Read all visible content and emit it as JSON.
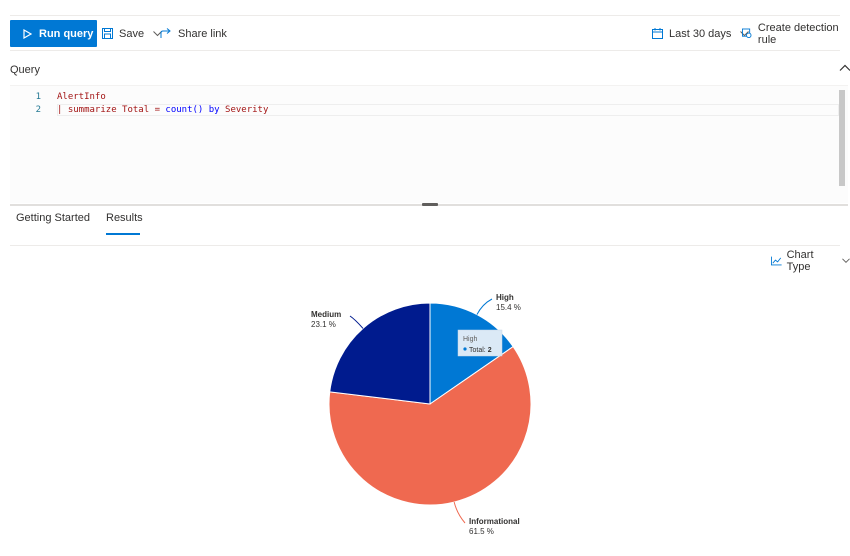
{
  "toolbar": {
    "run_query_label": "Run query",
    "save_label": "Save",
    "share_link_label": "Share link",
    "time_range_label": "Last 30 days",
    "create_rule_label": "Create detection rule"
  },
  "query": {
    "section_label": "Query",
    "lines": [
      {
        "num": "1",
        "text": "AlertInfo"
      },
      {
        "num": "2",
        "text": "| summarize Total = count() by Severity"
      }
    ],
    "tokens_line2": {
      "pipe": "| ",
      "summarize": "summarize",
      "total": " Total ",
      "eq": "=",
      "count": " count()",
      "by": " by",
      "severity": " Severity"
    }
  },
  "tabs": [
    {
      "label": "Getting Started",
      "active": false
    },
    {
      "label": "Results",
      "active": true
    }
  ],
  "chart_type_label": "Chart Type",
  "colors": {
    "accent": "#0078d4",
    "high": "#0078d4",
    "medium": "#001b8e",
    "informational": "#ef6950"
  },
  "tooltip": {
    "title": "High",
    "series": "Total",
    "value": "2"
  },
  "chart_data": {
    "type": "pie",
    "categories": [
      "High",
      "Informational",
      "Medium"
    ],
    "values": [
      2,
      8,
      3
    ],
    "labels": [
      {
        "name": "High",
        "percent": "15.4 %"
      },
      {
        "name": "Informational",
        "percent": "61.5 %"
      },
      {
        "name": "Medium",
        "percent": "23.1 %"
      }
    ],
    "slice_colors": [
      "#0078d4",
      "#ef6950",
      "#001b8e"
    ]
  }
}
